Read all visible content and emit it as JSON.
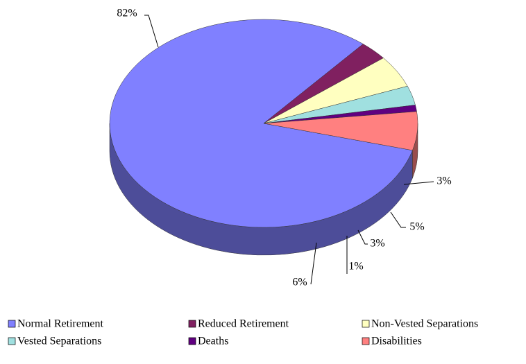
{
  "chart_data": {
    "type": "pie3d",
    "categories": [
      "Normal Retirement",
      "Reduced Retirement",
      "Non-Vested Separations",
      "Vested Separations",
      "Deaths",
      "Disabilities"
    ],
    "values": [
      82,
      3,
      5,
      3,
      1,
      6
    ],
    "value_labels": [
      "82%",
      "3%",
      "5%",
      "3%",
      "1%",
      "6%"
    ],
    "colors": [
      "#8080ff",
      "#802060",
      "#ffffc0",
      "#a0e0e0",
      "#600080",
      "#ff8080"
    ],
    "legend": "bottom"
  }
}
